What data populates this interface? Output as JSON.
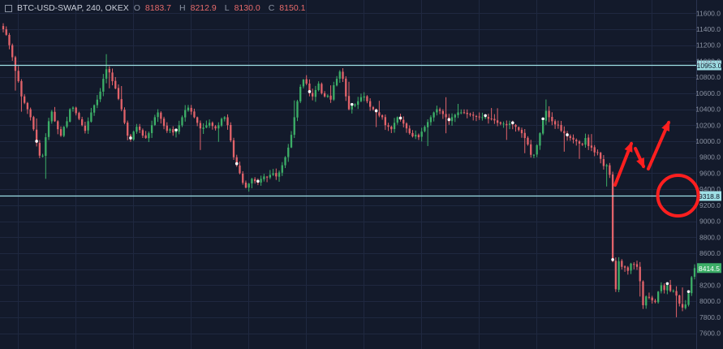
{
  "header": {
    "symbol": "BTC-USD-SWAP, 240, OKEX",
    "o_label": "O",
    "o_value": "8183.7",
    "h_label": "H",
    "h_value": "8212.9",
    "l_label": "L",
    "l_value": "8130.0",
    "c_label": "C",
    "c_value": "8150.1"
  },
  "colors": {
    "background": "#131a2b",
    "grid": "#1f2840",
    "up": "#3cae67",
    "down": "#e2636a",
    "level_line": "#9fe0e6",
    "annotation": "#ff1f1f",
    "axis_text": "#8b93a3"
  },
  "chart_data": {
    "type": "candlestick",
    "title": "",
    "xlabel": "",
    "ylabel": "",
    "ylim": [
      7550,
      11750
    ],
    "y_ticks": [
      7600,
      7800,
      8000,
      8200,
      8400,
      8600,
      8800,
      9000,
      9200,
      9400,
      9600,
      9800,
      10000,
      10200,
      10400,
      10600,
      10800,
      11000,
      11200,
      11400,
      11600
    ],
    "y_tick_labels": [
      "7600.0",
      "7800.0",
      "8000.0",
      "8200.0",
      "8400.0",
      "8600.0",
      "8800.0",
      "9000.0",
      "9200.0",
      "9400.0",
      "9600.0",
      "9800.0",
      "10000.0",
      "10200.0",
      "10400.0",
      "10600.0",
      "10800.0",
      "11000.0",
      "11200.0",
      "11400.0",
      "11600.0"
    ],
    "grid": true,
    "horizontal_levels": [
      {
        "value": 10953,
        "label": "10953.0"
      },
      {
        "value": 9318.8,
        "label": "9318.8"
      }
    ],
    "last_price": {
      "value": 8414.5,
      "label": "8414.5"
    },
    "close_path": [
      11400,
      11330,
      11200,
      11050,
      10880,
      10750,
      10560,
      10480,
      10400,
      10300,
      10150,
      9980,
      9820,
      9820,
      10050,
      10250,
      10370,
      10250,
      10150,
      10070,
      10180,
      10250,
      10400,
      10420,
      10350,
      10280,
      10200,
      10130,
      10250,
      10360,
      10450,
      10520,
      10620,
      10780,
      10900,
      10860,
      10750,
      10660,
      10530,
      10400,
      10230,
      10070,
      10020,
      10120,
      10180,
      10140,
      10070,
      10040,
      10100,
      10200,
      10300,
      10360,
      10280,
      10190,
      10130,
      10150,
      10110,
      10120,
      10200,
      10300,
      10390,
      10420,
      10370,
      10300,
      10230,
      10160,
      10170,
      10200,
      10230,
      10190,
      10160,
      10200,
      10280,
      10300,
      10200,
      10010,
      9800,
      9700,
      9600,
      9480,
      9420,
      9470,
      9530,
      9500,
      9480,
      9530,
      9560,
      9550,
      9580,
      9600,
      9560,
      9610,
      9700,
      9800,
      9920,
      10080,
      10300,
      10500,
      10680,
      10770,
      10720,
      10600,
      10560,
      10640,
      10720,
      10600,
      10560,
      10570,
      10520,
      10700,
      10780,
      10870,
      10780,
      10560,
      10400,
      10440,
      10460,
      10500,
      10550,
      10560,
      10500,
      10430,
      10400,
      10360,
      10320,
      10300,
      10200,
      10180,
      10150,
      10230,
      10300,
      10270,
      10220,
      10160,
      10100,
      10060,
      10080,
      10050,
      10120,
      10180,
      10240,
      10300,
      10360,
      10400,
      10380,
      10340,
      10300,
      10250,
      10300,
      10330,
      10360,
      10360,
      10360,
      10340,
      10330,
      10320,
      10310,
      10300,
      10300,
      10300,
      10280,
      10280,
      10260,
      10230,
      10220,
      10220,
      10200,
      10220,
      10210,
      10180,
      10140,
      10100,
      10040,
      9960,
      9830,
      9830,
      9950,
      10100,
      10260,
      10380,
      10300,
      10250,
      10210,
      10200,
      10130,
      10100,
      10060,
      10040,
      10020,
      10000,
      9970,
      9960,
      10040,
      9940,
      9920,
      9860,
      9860,
      9780,
      9690,
      9700,
      9580,
      8500,
      8150,
      8500,
      8430,
      8420,
      8380,
      8470,
      8460,
      8430,
      8250,
      7950,
      8060,
      8050,
      8010,
      7990,
      8120,
      8200,
      8140,
      8200,
      8130,
      8130,
      8070,
      7970,
      7920,
      7960,
      8100,
      8300,
      8414.5
    ],
    "annotations": [
      {
        "type": "circle",
        "price": 9320,
        "bar": 222,
        "description": "red circle at breakdown"
      },
      {
        "type": "arrow",
        "description": "red arrow up"
      },
      {
        "type": "arrow",
        "description": "red arrow down"
      },
      {
        "type": "arrow",
        "description": "red arrow up"
      }
    ]
  }
}
